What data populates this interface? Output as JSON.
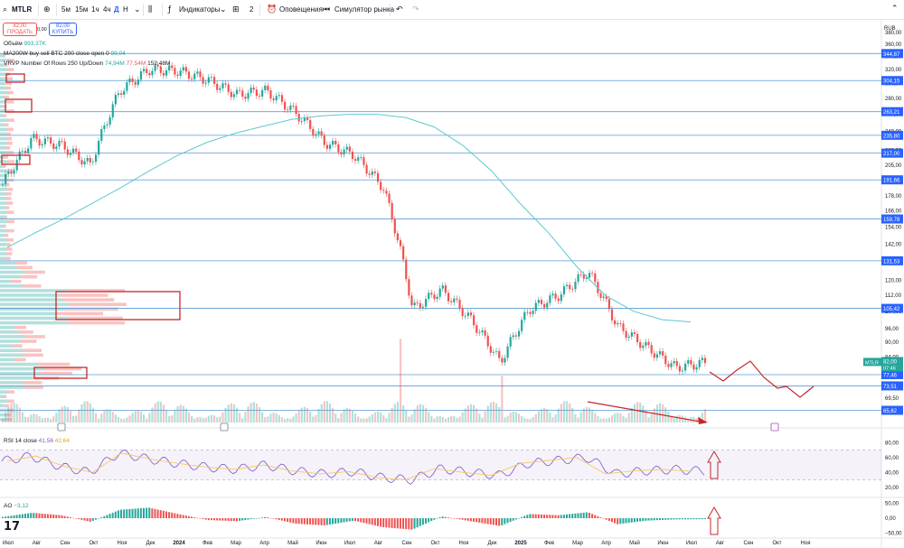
{
  "toolbar": {
    "symbol": "MTLR",
    "intervals": [
      "5м",
      "15м",
      "1ч",
      "4ч",
      "Д",
      "Н"
    ],
    "indicators_label": "Индикаторы",
    "layout_count": "2",
    "alerts_label": "Оповещения",
    "replay_label": "Симулятор рынка"
  },
  "trade": {
    "sell_price": "82,00",
    "sell_label": "ПРОДАТЬ",
    "spread": "0,00",
    "buy_price": "82,00",
    "buy_label": "КУПИТЬ"
  },
  "legends": {
    "volume_label": "Объём",
    "volume_value": "993,37K",
    "ma_label": "MA200W buy sell BTC 200 close open 0",
    "ma_value": "99,04",
    "vrvp_label": "VRVP Number Of Rows 250 Up/Down",
    "vrvp_up": "74,94M",
    "vrvp_down": "77,54M",
    "vrvp_total": "152,48M",
    "rsi_label": "RSI 14 close",
    "rsi_value": "41,56",
    "rsi_ma": "42,64",
    "ao_label": "AO",
    "ao_value": "−3,12"
  },
  "price_axis": {
    "currency": "RUB",
    "ticks": [
      "380,00",
      "360,00",
      "340,00",
      "320,00",
      "300,00",
      "280,00",
      "260,00",
      "240,00",
      "220,00",
      "205,00",
      "192,00",
      "178,00",
      "166,00",
      "154,00",
      "142,00",
      "130,00",
      "120,00",
      "112,00",
      "104,00",
      "96,00",
      "90,00",
      "84,00",
      "78,00",
      "74,00",
      "69,50",
      "65,00"
    ],
    "level_labels": [
      "344,87",
      "304,15",
      "263,21",
      "235,80",
      "217,00",
      "191,66",
      "159,78",
      "131,53",
      "105,42",
      "77,46",
      "73,51",
      "65,62"
    ],
    "current_symbol": "MTLR",
    "current_price": "82,00",
    "countdown": "07:46"
  },
  "rsi_axis": {
    "ticks": [
      "80,00",
      "60,00",
      "40,00",
      "20,00"
    ]
  },
  "ao_axis": {
    "ticks": [
      "50,00",
      "0,00",
      "−50,00"
    ]
  },
  "time_axis": {
    "ticks": [
      "Июл",
      "Авг",
      "Сен",
      "Окт",
      "Ноя",
      "Дек",
      "2024",
      "Фев",
      "Мар",
      "Апр",
      "Май",
      "Июн",
      "Июл",
      "Авг",
      "Сен",
      "Окт",
      "Ноя",
      "Дек",
      "2025",
      "Фев",
      "Мар",
      "Апр",
      "Май",
      "Июн",
      "Июл",
      "Авг",
      "Сен",
      "Окт",
      "Ноя"
    ]
  },
  "colors": {
    "up": "#26a69a",
    "down": "#ef5350",
    "level": "#5b9bd5",
    "ma": "#5ec8d0",
    "rsi": "#7e57c2",
    "rsi_ma": "#f5c451",
    "annotation": "#c62828",
    "label_bg": "#2962ff"
  },
  "chart_data": [
    {
      "type": "line",
      "title": "MTLR",
      "note": "Daily candlestick chart, approximate closing prices (RUB) read from the chart",
      "x": [
        "2023-07",
        "2023-08",
        "2023-09",
        "2023-10",
        "2023-11",
        "2023-12",
        "2024-01",
        "2024-02",
        "2024-03",
        "2024-04",
        "2024-05",
        "2024-06",
        "2024-07",
        "2024-08",
        "2024-09",
        "2024-10",
        "2024-11",
        "2024-12",
        "2025-01",
        "2025-02",
        "2025-03",
        "2025-04",
        "2025-05",
        "2025-06",
        "2025-07"
      ],
      "series": [
        {
          "name": "MTLR",
          "values": [
            188,
            232,
            225,
            205,
            290,
            320,
            318,
            305,
            285,
            290,
            262,
            228,
            215,
            185,
            105,
            115,
            100,
            82,
            105,
            112,
            125,
            97,
            88,
            80,
            82
          ]
        },
        {
          "name": "MA200W",
          "values": [
            140,
            150,
            160,
            172,
            185,
            200,
            215,
            228,
            238,
            246,
            254,
            258,
            260,
            260,
            256,
            245,
            225,
            200,
            172,
            150,
            128,
            112,
            104,
            100,
            99
          ]
        }
      ],
      "horizontal_levels": [
        344.87,
        304.15,
        263.21,
        235.8,
        217.0,
        191.66,
        159.78,
        131.53,
        105.42,
        77.46,
        73.51,
        65.62
      ],
      "ylim": [
        62,
        400
      ],
      "yscale": "log"
    },
    {
      "type": "line",
      "title": "RSI 14 close",
      "series": [
        {
          "name": "RSI",
          "values": [
            55,
            62,
            48,
            40,
            66,
            58,
            52,
            47,
            44,
            50,
            42,
            38,
            41,
            33,
            30,
            45,
            40,
            36,
            52,
            56,
            60,
            38,
            42,
            44,
            41.56
          ]
        }
      ],
      "ylim": [
        10,
        90
      ]
    },
    {
      "type": "bar",
      "title": "AO",
      "values": [
        4,
        18,
        10,
        -12,
        28,
        35,
        14,
        -6,
        -10,
        4,
        -18,
        -24,
        -8,
        -30,
        -38,
        6,
        -10,
        -26,
        14,
        10,
        20,
        -20,
        -8,
        -4,
        -3.12
      ],
      "ylim": [
        -60,
        60
      ]
    }
  ]
}
